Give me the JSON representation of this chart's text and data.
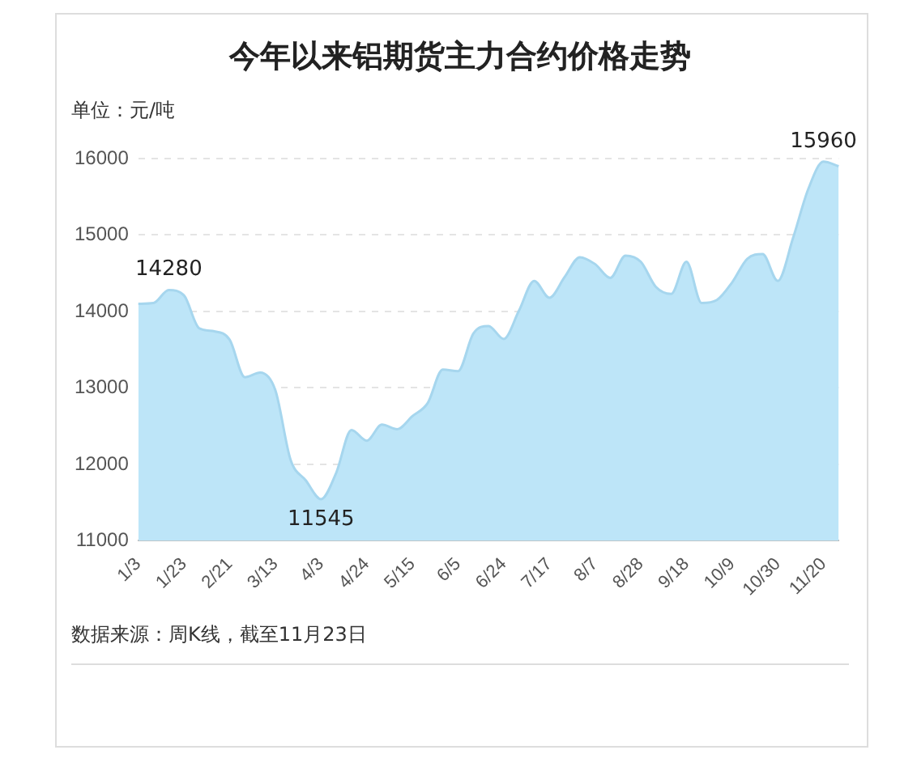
{
  "chart_data": {
    "type": "area",
    "title": "今年以来铝期货主力合约价格走势",
    "ylabel": "单位：元/吨",
    "categories": [
      "1/3",
      null,
      null,
      "1/23",
      null,
      null,
      "2/21",
      null,
      null,
      "3/13",
      null,
      null,
      "4/3",
      null,
      null,
      "4/24",
      null,
      null,
      "5/15",
      null,
      null,
      "6/5",
      null,
      null,
      "6/24",
      null,
      null,
      "7/17",
      null,
      null,
      "8/7",
      null,
      null,
      "8/28",
      null,
      null,
      "9/18",
      null,
      null,
      "10/9",
      null,
      null,
      "10/30",
      null,
      null,
      "11/20",
      null
    ],
    "values": [
      14100,
      14110,
      14280,
      14210,
      13780,
      13740,
      13630,
      13140,
      13200,
      12970,
      12060,
      11790,
      11545,
      11890,
      12450,
      12310,
      12520,
      12460,
      12630,
      12800,
      13240,
      13220,
      13710,
      13810,
      13640,
      14010,
      14400,
      14180,
      14450,
      14710,
      14620,
      14440,
      14730,
      14650,
      14320,
      14230,
      14650,
      14110,
      14150,
      14380,
      14690,
      14750,
      14400,
      14960,
      15600,
      15960,
      15900
    ],
    "value_labels": [
      null,
      null,
      "14280",
      null,
      null,
      null,
      null,
      null,
      null,
      null,
      null,
      null,
      "11545",
      null,
      null,
      null,
      null,
      null,
      null,
      null,
      null,
      null,
      null,
      null,
      null,
      null,
      null,
      null,
      null,
      null,
      null,
      null,
      null,
      null,
      null,
      null,
      null,
      null,
      null,
      null,
      null,
      null,
      null,
      null,
      null,
      "15960",
      null
    ],
    "color": "#bde5f8",
    "ylim": [
      11000,
      16000
    ],
    "yticks": [
      11000,
      12000,
      13000,
      14000,
      15000,
      16000
    ],
    "grid": "y",
    "marker": "none",
    "annotations": [
      "数据来源：周K线，截至11月23日"
    ]
  }
}
